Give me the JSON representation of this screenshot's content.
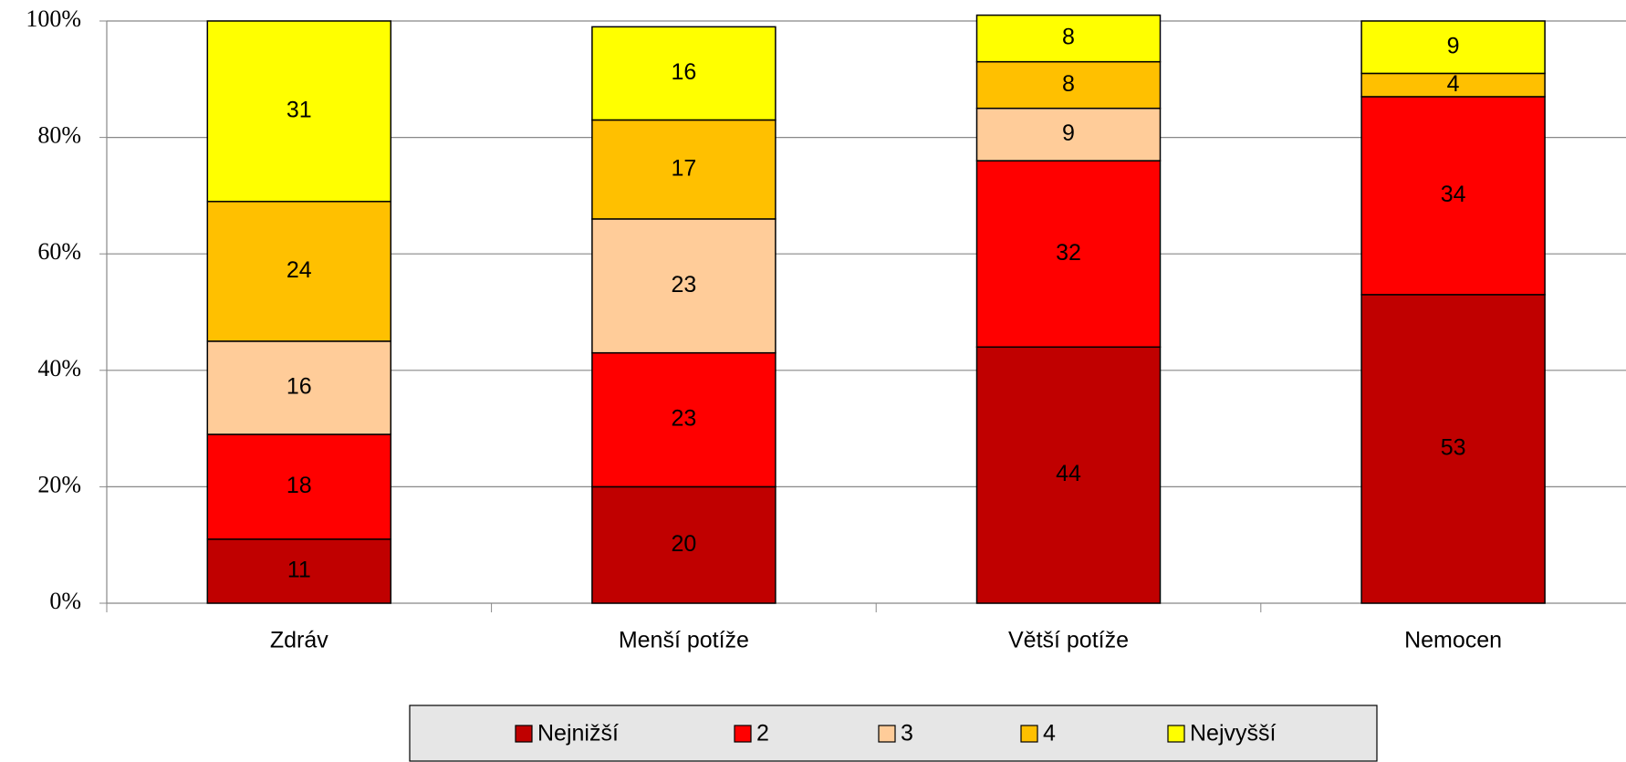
{
  "chart_data": {
    "type": "stacked_bar",
    "categories": [
      "Zdráv",
      "Menší potíže",
      "Větší potíže",
      "Nemocen"
    ],
    "series": [
      {
        "name": "Nejnižší",
        "color": "#c00000",
        "values": [
          11,
          20,
          44,
          53
        ]
      },
      {
        "name": "2",
        "color": "#ff0000",
        "values": [
          18,
          23,
          32,
          34
        ]
      },
      {
        "name": "3",
        "color": "#ffcc99",
        "values": [
          16,
          23,
          9,
          0
        ]
      },
      {
        "name": "4",
        "color": "#ffc000",
        "values": [
          24,
          17,
          8,
          4
        ]
      },
      {
        "name": "Nejvyšší",
        "color": "#ffff00",
        "values": [
          31,
          16,
          8,
          9
        ]
      }
    ],
    "ylim": [
      0,
      100
    ],
    "yticks": [
      {
        "value": 0,
        "label": "0%"
      },
      {
        "value": 20,
        "label": "20%"
      },
      {
        "value": 40,
        "label": "40%"
      },
      {
        "value": 60,
        "label": "60%"
      },
      {
        "value": 80,
        "label": "80%"
      },
      {
        "value": 100,
        "label": "100%"
      }
    ],
    "grid": true,
    "legend": "bottom"
  }
}
